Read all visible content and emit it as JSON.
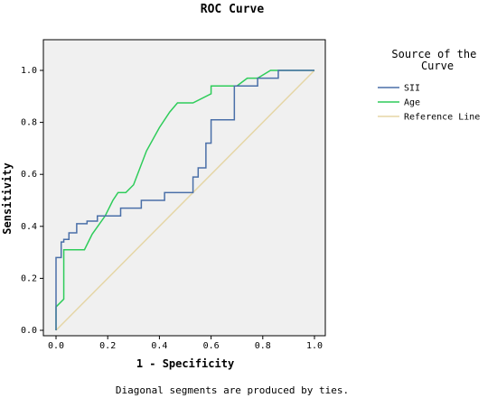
{
  "chart_data": {
    "type": "line",
    "title": "ROC Curve",
    "xlabel": "1 - Specificity",
    "ylabel": "Sensitivity",
    "xlim": [
      0,
      1
    ],
    "ylim": [
      0,
      1
    ],
    "x_ticks": [
      "0.0",
      "0.2",
      "0.4",
      "0.6",
      "0.8",
      "1.0"
    ],
    "y_ticks": [
      "0.0",
      "0.2",
      "0.4",
      "0.6",
      "0.8",
      "1.0"
    ],
    "grid": false,
    "legend": {
      "title": "Source of the Curve",
      "placement": "right"
    },
    "series": [
      {
        "name": "SII",
        "color": "#4a6fa8",
        "style": "step",
        "x": [
          0,
          0,
          0.02,
          0.02,
          0.03,
          0.03,
          0.05,
          0.05,
          0.08,
          0.08,
          0.12,
          0.12,
          0.16,
          0.16,
          0.25,
          0.25,
          0.33,
          0.33,
          0.42,
          0.42,
          0.53,
          0.53,
          0.55,
          0.55,
          0.58,
          0.58,
          0.6,
          0.6,
          0.69,
          0.69,
          0.78,
          0.78,
          0.86,
          0.86,
          1.0
        ],
        "y": [
          0,
          0.28,
          0.28,
          0.34,
          0.34,
          0.35,
          0.35,
          0.375,
          0.375,
          0.41,
          0.41,
          0.42,
          0.42,
          0.44,
          0.44,
          0.47,
          0.47,
          0.5,
          0.5,
          0.53,
          0.53,
          0.59,
          0.59,
          0.625,
          0.625,
          0.72,
          0.72,
          0.81,
          0.81,
          0.94,
          0.94,
          0.97,
          0.97,
          1.0,
          1.0
        ]
      },
      {
        "name": "Age",
        "color": "#2ecc5a",
        "style": "line",
        "x": [
          0,
          0,
          0.03,
          0.03,
          0.11,
          0.14,
          0.19,
          0.22,
          0.24,
          0.27,
          0.3,
          0.35,
          0.4,
          0.44,
          0.47,
          0.53,
          0.6,
          0.6,
          0.7,
          0.74,
          0.78,
          0.83,
          1.0
        ],
        "y": [
          0,
          0.09,
          0.12,
          0.31,
          0.31,
          0.37,
          0.44,
          0.5,
          0.53,
          0.53,
          0.56,
          0.69,
          0.78,
          0.84,
          0.875,
          0.875,
          0.91,
          0.94,
          0.94,
          0.97,
          0.97,
          1.0,
          1.0
        ]
      },
      {
        "name": "Reference Line",
        "color": "#e5d6a6",
        "style": "line",
        "x": [
          0,
          1
        ],
        "y": [
          0,
          1
        ]
      }
    ],
    "annotations": [
      "Diagonal segments are produced by ties."
    ]
  }
}
